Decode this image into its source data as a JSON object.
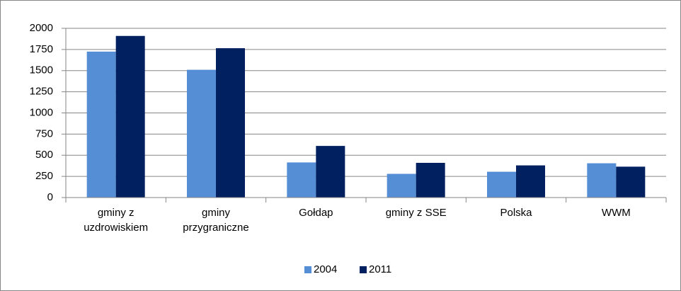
{
  "chart_data": {
    "type": "bar",
    "categories": [
      "gminy z uzdrowiskiem",
      "gminy przygraniczne",
      "Gołdap",
      "gminy z SSE",
      "Polska",
      "WWM"
    ],
    "series": [
      {
        "name": "2004",
        "color": "#558ed5",
        "values": [
          1725,
          1510,
          415,
          280,
          305,
          405
        ]
      },
      {
        "name": "2011",
        "color": "#002060",
        "values": [
          1910,
          1765,
          610,
          410,
          380,
          365
        ]
      }
    ],
    "ylim": [
      0,
      2000
    ],
    "yticks": [
      0,
      250,
      500,
      750,
      1000,
      1250,
      1500,
      1750,
      2000
    ],
    "grid": true,
    "legend": "bottom"
  }
}
